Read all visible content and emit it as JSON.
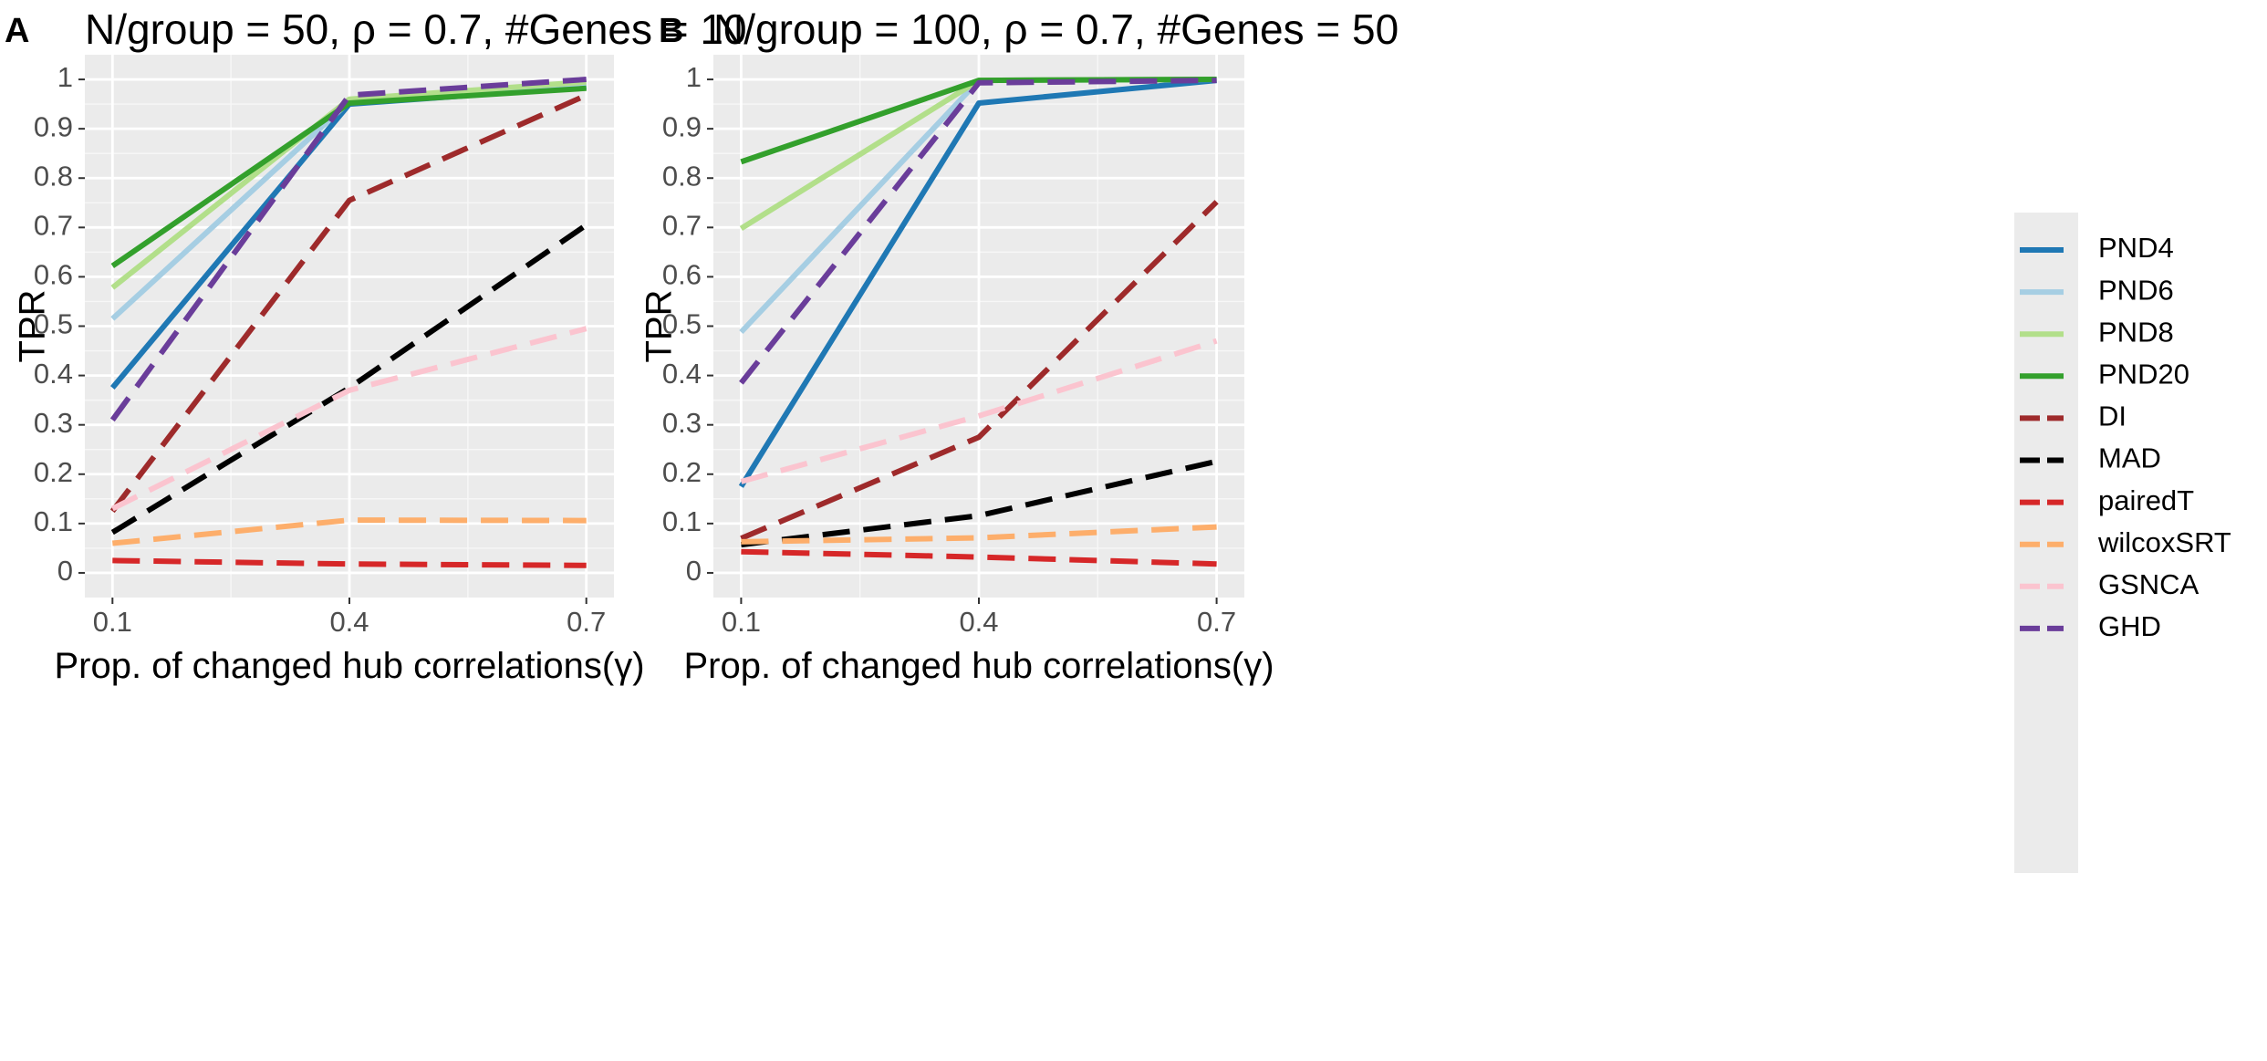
{
  "chart_data": [
    {
      "panel": "A",
      "title": "N/group = 50, ρ = 0.7, #Genes = 10",
      "type": "line",
      "xlabel": "Prop. of changed hub correlations(γ)",
      "ylabel": "TPR",
      "x": [
        0.1,
        0.4,
        0.7
      ],
      "xticks": [
        "0.1",
        "0.4",
        "0.7"
      ],
      "xlim": [
        0.065,
        0.735
      ],
      "yticks": [
        "0",
        "0.1",
        "0.2",
        "0.3",
        "0.4",
        "0.5",
        "0.6",
        "0.7",
        "0.8",
        "0.9",
        "1"
      ],
      "ylim": [
        -0.05,
        1.05
      ],
      "series": [
        {
          "name": "PND4",
          "values": [
            0.375,
            0.95,
            0.985
          ]
        },
        {
          "name": "PND6",
          "values": [
            0.515,
            0.955,
            0.99
          ]
        },
        {
          "name": "PND8",
          "values": [
            0.578,
            0.96,
            0.995
          ]
        },
        {
          "name": "PND20",
          "values": [
            0.622,
            0.952,
            0.982
          ]
        },
        {
          "name": "DI",
          "values": [
            0.125,
            0.755,
            0.968
          ]
        },
        {
          "name": "MAD",
          "values": [
            0.082,
            0.375,
            0.705
          ]
        },
        {
          "name": "pairedT",
          "values": [
            0.025,
            0.018,
            0.015
          ]
        },
        {
          "name": "wilcoxSRT",
          "values": [
            0.06,
            0.107,
            0.106
          ]
        },
        {
          "name": "GSNCA",
          "values": [
            0.13,
            0.37,
            0.495
          ]
        },
        {
          "name": "GHD",
          "values": [
            0.31,
            0.968,
            1.0
          ]
        }
      ]
    },
    {
      "panel": "B",
      "title": "N/group = 100, ρ = 0.7, #Genes = 50",
      "type": "line",
      "xlabel": "Prop. of changed hub correlations(γ)",
      "ylabel": "TPR",
      "x": [
        0.1,
        0.4,
        0.7
      ],
      "xticks": [
        "0.1",
        "0.4",
        "0.7"
      ],
      "xlim": [
        0.065,
        0.735
      ],
      "yticks": [
        "0",
        "0.1",
        "0.2",
        "0.3",
        "0.4",
        "0.5",
        "0.6",
        "0.7",
        "0.8",
        "0.9",
        "1"
      ],
      "ylim": [
        -0.05,
        1.05
      ],
      "series": [
        {
          "name": "PND4",
          "values": [
            0.175,
            0.952,
            0.998
          ]
        },
        {
          "name": "PND6",
          "values": [
            0.488,
            0.998,
            1.0
          ]
        },
        {
          "name": "PND8",
          "values": [
            0.698,
            0.998,
            1.0
          ]
        },
        {
          "name": "PND20",
          "values": [
            0.833,
            0.998,
            1.0
          ]
        },
        {
          "name": "DI",
          "values": [
            0.07,
            0.275,
            0.752
          ]
        },
        {
          "name": "MAD",
          "values": [
            0.057,
            0.116,
            0.226
          ]
        },
        {
          "name": "pairedT",
          "values": [
            0.043,
            0.032,
            0.018
          ]
        },
        {
          "name": "wilcoxSRT",
          "values": [
            0.063,
            0.071,
            0.093
          ]
        },
        {
          "name": "GSNCA",
          "values": [
            0.185,
            0.318,
            0.47
          ]
        },
        {
          "name": "GHD",
          "values": [
            0.385,
            0.993,
            0.998
          ]
        }
      ]
    }
  ],
  "legend": {
    "placement": "right",
    "items": [
      {
        "name": "PND4",
        "color": "#1F78B4",
        "dash": "solid"
      },
      {
        "name": "PND6",
        "color": "#A6CEE3",
        "dash": "solid"
      },
      {
        "name": "PND8",
        "color": "#B2DF8A",
        "dash": "solid"
      },
      {
        "name": "PND20",
        "color": "#33A02C",
        "dash": "solid"
      },
      {
        "name": "DI",
        "color": "#9E2A2B",
        "dash": "dashed"
      },
      {
        "name": "MAD",
        "color": "#000000",
        "dash": "dashed"
      },
      {
        "name": "pairedT",
        "color": "#D62728",
        "dash": "dashed"
      },
      {
        "name": "wilcoxSRT",
        "color": "#FDAE6B",
        "dash": "dashed"
      },
      {
        "name": "GSNCA",
        "color": "#FBC4CF",
        "dash": "dashed"
      },
      {
        "name": "GHD",
        "color": "#6A3D9A",
        "dash": "dashed"
      }
    ]
  }
}
